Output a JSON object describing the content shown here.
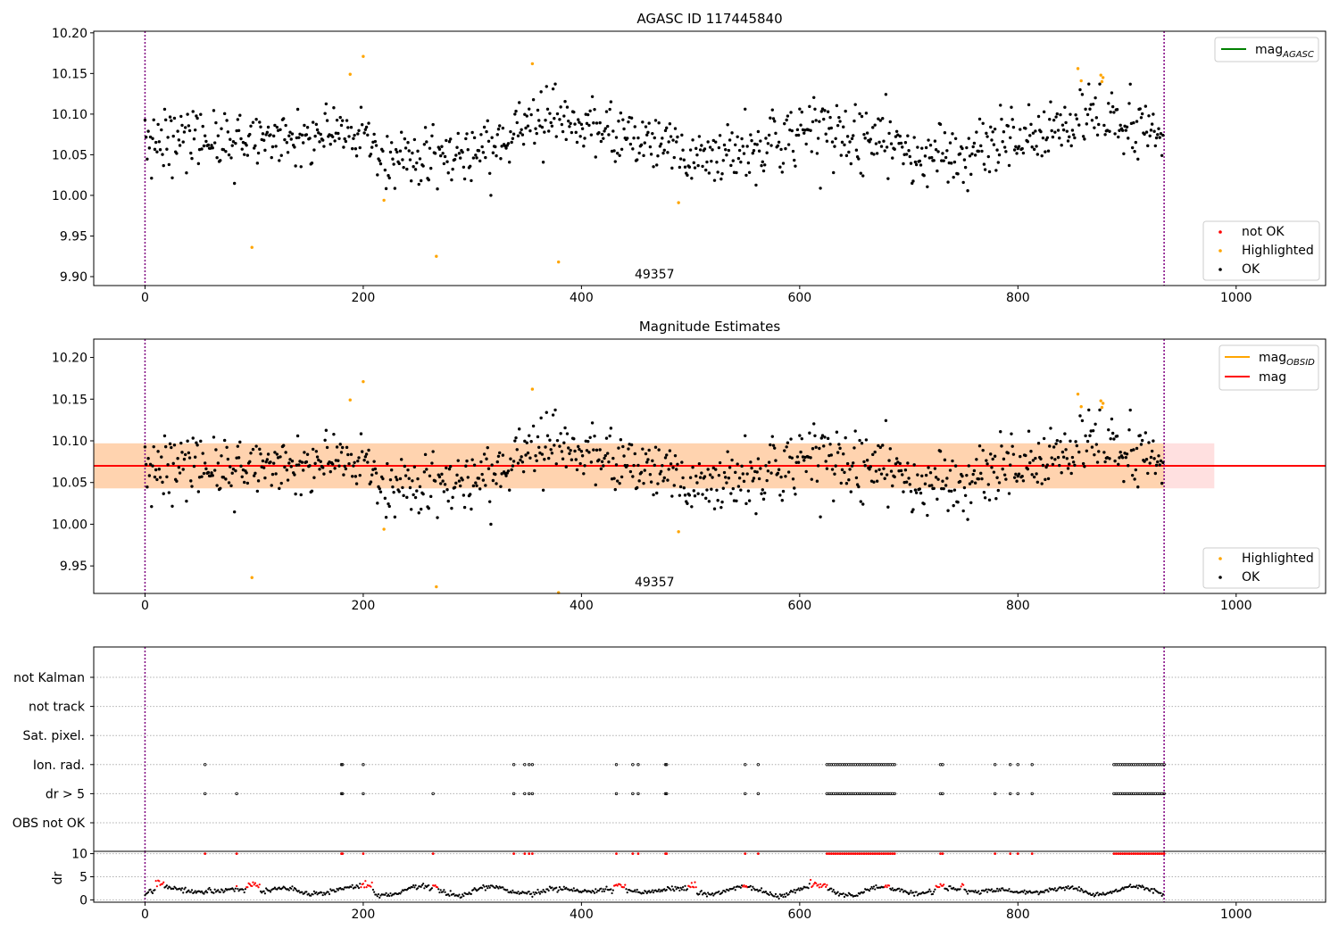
{
  "chart_data": [
    {
      "type": "scatter",
      "title": "AGASC ID 117445840",
      "xlabel": "",
      "ylabel": "",
      "xlim": [
        -47,
        1082
      ],
      "ylim": [
        9.889,
        10.202
      ],
      "x_ticks": [
        0,
        200,
        400,
        600,
        800,
        1000
      ],
      "y_ticks": [
        9.9,
        9.95,
        10.0,
        10.05,
        10.1,
        10.15,
        10.2
      ],
      "grid": false,
      "obsid_label": "49357",
      "obsid_label_x": 467,
      "obsid_boundaries": [
        0,
        934
      ],
      "boundary_color": "#800080",
      "legend_lines": [
        {
          "name": "mag",
          "subscript": "AGASC",
          "color": "#008000"
        }
      ],
      "legend_lines_position": "top-right",
      "legend_points": [
        {
          "name": "not OK",
          "color": "#ff0000"
        },
        {
          "name": "Highlighted",
          "color": "#ffa500"
        },
        {
          "name": "OK",
          "color": "#000000"
        }
      ],
      "legend_points_position": "lower-right",
      "n_points": 934,
      "mag_model": {
        "mean": 10.07,
        "trend": [
          [
            0,
            10.058
          ],
          [
            30,
            10.066
          ],
          [
            80,
            10.07
          ],
          [
            140,
            10.07
          ],
          [
            180,
            10.075
          ],
          [
            200,
            10.085
          ],
          [
            210,
            10.055
          ],
          [
            230,
            10.042
          ],
          [
            265,
            10.052
          ],
          [
            300,
            10.05
          ],
          [
            320,
            10.06
          ],
          [
            345,
            10.085
          ],
          [
            375,
            10.095
          ],
          [
            400,
            10.085
          ],
          [
            440,
            10.075
          ],
          [
            480,
            10.062
          ],
          [
            500,
            10.045
          ],
          [
            530,
            10.05
          ],
          [
            570,
            10.06
          ],
          [
            600,
            10.078
          ],
          [
            650,
            10.07
          ],
          [
            690,
            10.06
          ],
          [
            720,
            10.052
          ],
          [
            750,
            10.045
          ],
          [
            780,
            10.065
          ],
          [
            810,
            10.08
          ],
          [
            850,
            10.095
          ],
          [
            880,
            10.1
          ],
          [
            934,
            10.075
          ]
        ],
        "scatter": 0.022
      },
      "highlighted_points": [
        [
          98,
          9.936
        ],
        [
          188,
          10.149
        ],
        [
          200,
          10.171
        ],
        [
          219,
          9.994
        ],
        [
          267,
          9.925
        ],
        [
          355,
          10.162
        ],
        [
          379,
          9.918
        ],
        [
          489,
          9.991
        ],
        [
          855,
          10.156
        ],
        [
          858,
          10.141
        ],
        [
          876,
          10.148
        ],
        [
          877,
          10.14
        ],
        [
          878,
          10.145
        ]
      ],
      "not_ok_points": []
    },
    {
      "type": "scatter",
      "title": "Magnitude Estimates",
      "xlabel": "",
      "ylabel": "",
      "xlim": [
        -47,
        1082
      ],
      "ylim": [
        9.917,
        10.222
      ],
      "x_ticks": [
        0,
        200,
        400,
        600,
        800,
        1000
      ],
      "y_ticks": [
        9.95,
        10.0,
        10.05,
        10.1,
        10.15,
        10.2
      ],
      "grid": false,
      "obsid_label": "49357",
      "obsid_label_x": 467,
      "obsid_boundaries": [
        0,
        934
      ],
      "boundary_color": "#800080",
      "mag": 10.07,
      "mag_band": [
        10.043,
        10.097
      ],
      "mag_band_xrange": [
        -47,
        980
      ],
      "mag_obsid_band": [
        10.043,
        10.097
      ],
      "mag_obsid_xrange": [
        -47,
        934
      ],
      "legend_lines": [
        {
          "name": "mag",
          "subscript": "OBSID",
          "color": "#ffa500"
        },
        {
          "name": "mag",
          "subscript": "",
          "color": "#ff0000"
        }
      ],
      "legend_lines_position": "top-right",
      "legend_points": [
        {
          "name": "Highlighted",
          "color": "#ffa500"
        },
        {
          "name": "OK",
          "color": "#000000"
        }
      ],
      "legend_points_position": "lower-right"
    },
    {
      "type": "scatter",
      "title": "",
      "xlabel": "",
      "xlim": [
        -47,
        1082
      ],
      "x_ticks": [
        0,
        200,
        400,
        600,
        800,
        1000
      ],
      "flag_rows": [
        "not Kalman",
        "not track",
        "Sat. pixel.",
        "Ion. rad.",
        "dr > 5",
        "OBS not OK"
      ],
      "flags": {
        "Ion. rad.": [
          55,
          180,
          181,
          200,
          338,
          348,
          352,
          355,
          432,
          447,
          452,
          477,
          478,
          550,
          562,
          [
            625,
            688
          ],
          [
            729,
            731
          ],
          779,
          793,
          800,
          813,
          [
            888,
            934
          ]
        ],
        "dr > 5": [
          55,
          84,
          180,
          181,
          200,
          264,
          338,
          348,
          352,
          355,
          432,
          447,
          452,
          477,
          478,
          550,
          562,
          [
            625,
            688
          ],
          [
            729,
            731
          ],
          779,
          793,
          800,
          813,
          [
            888,
            934
          ]
        ]
      },
      "dr_ylabel": "dr",
      "dr_ylim": [
        -0.5,
        10.5
      ],
      "dr_y_ticks": [
        0,
        5,
        10
      ],
      "dr_clip_value": 10,
      "dr_red_segments": [
        [
          10,
          17
        ],
        [
          84,
          84
        ],
        [
          93,
          105
        ],
        [
          198,
          208
        ],
        [
          264,
          268
        ],
        [
          430,
          440
        ],
        [
          498,
          505
        ],
        [
          548,
          552
        ],
        [
          610,
          625
        ],
        [
          678,
          682
        ],
        [
          725,
          732
        ],
        [
          748,
          750
        ]
      ],
      "dr_black_color": "#000000",
      "dr_red_color": "#ff0000"
    }
  ]
}
